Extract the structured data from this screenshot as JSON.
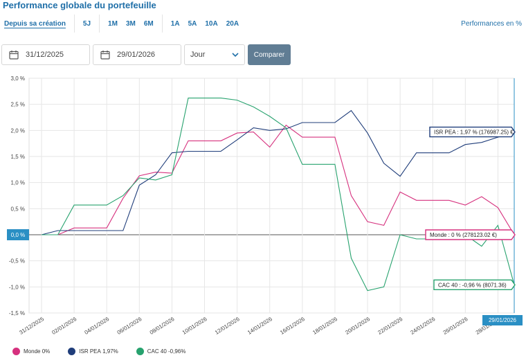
{
  "header": {
    "title": "Performance globale du portefeuille",
    "perf_unit_label": "Performances en %",
    "periods": [
      {
        "label": "Depuis sa création",
        "active": true
      },
      {
        "label": "5J"
      },
      {
        "label": "1M"
      },
      {
        "label": "3M"
      },
      {
        "label": "6M"
      },
      {
        "label": "1A"
      },
      {
        "label": "5A"
      },
      {
        "label": "10A"
      },
      {
        "label": "20A"
      }
    ]
  },
  "filters": {
    "start_date": "31/12/2025",
    "end_date": "29/01/2026",
    "granularity": "Jour",
    "compare_label": "Comparer"
  },
  "chart_data": {
    "type": "line",
    "title": "Performance globale du portefeuille",
    "ylabel": "Performances en %",
    "ylim": [
      -1.5,
      3.0
    ],
    "yticks": [
      "3,0 %",
      "2,5 %",
      "2,0 %",
      "1,5 %",
      "1,0 %",
      "0,5 %",
      "",
      "-0,5 %",
      "-1,0 %",
      "-1,5 %"
    ],
    "ytick_values": [
      3.0,
      2.5,
      2.0,
      1.5,
      1.0,
      0.5,
      0.0,
      -0.5,
      -1.0,
      -1.5
    ],
    "x": [
      "31/12/2025",
      "01/01/2026",
      "02/01/2026",
      "03/01/2026",
      "04/01/2026",
      "05/01/2026",
      "06/01/2026",
      "07/01/2026",
      "08/01/2026",
      "09/01/2026",
      "10/01/2026",
      "11/01/2026",
      "12/01/2026",
      "13/01/2026",
      "14/01/2026",
      "15/01/2026",
      "16/01/2026",
      "17/01/2026",
      "18/01/2026",
      "19/01/2026",
      "20/01/2026",
      "21/01/2026",
      "22/01/2026",
      "23/01/2026",
      "24/01/2026",
      "25/01/2026",
      "26/01/2026",
      "27/01/2026",
      "28/01/2026",
      "29/01/2026"
    ],
    "xtick_labels": [
      "31/12/2025",
      "02/01/2026",
      "04/01/2026",
      "06/01/2026",
      "08/01/2026",
      "10/01/2026",
      "12/01/2026",
      "14/01/2026",
      "16/01/2026",
      "18/01/2026",
      "20/01/2026",
      "22/01/2026",
      "24/01/2026",
      "26/01/2026",
      "28/01/2026"
    ],
    "series": [
      {
        "name": "Monde",
        "legend": "0%",
        "color": "#d6317e",
        "values": [
          0,
          0,
          0.13,
          0.13,
          0.13,
          0.7,
          1.13,
          1.2,
          1.18,
          1.8,
          1.8,
          1.8,
          1.95,
          1.97,
          1.68,
          2.1,
          1.87,
          1.87,
          1.87,
          0.75,
          0.25,
          0.18,
          0.82,
          0.66,
          0.66,
          0.66,
          0.57,
          0.73,
          0.52,
          0.0
        ],
        "tooltip": "Monde : 0 % (278123.02 €)"
      },
      {
        "name": "ISR PEA",
        "legend": "1,97%",
        "color": "#1f3d7a",
        "values": [
          0,
          0.08,
          0.08,
          0.08,
          0.08,
          0.08,
          0.95,
          1.15,
          1.57,
          1.6,
          1.6,
          1.6,
          1.82,
          2.05,
          2.0,
          2.03,
          2.15,
          2.15,
          2.15,
          2.38,
          1.95,
          1.37,
          1.12,
          1.57,
          1.57,
          1.57,
          1.73,
          1.77,
          1.87,
          1.97
        ],
        "tooltip": "ISR PEA : 1,97 % (176987.25) €"
      },
      {
        "name": "CAC 40",
        "legend": "-0,96%",
        "color": "#27a26e",
        "values": [
          0,
          0,
          0.57,
          0.57,
          0.57,
          0.75,
          1.09,
          1.05,
          1.15,
          2.62,
          2.62,
          2.62,
          2.58,
          2.45,
          2.27,
          2.05,
          1.35,
          1.35,
          1.35,
          -0.45,
          -1.07,
          -1.0,
          0.0,
          -0.08,
          -0.08,
          -0.08,
          0.0,
          -0.22,
          0.18,
          -0.96
        ],
        "tooltip": "CAC 40 : -0,96 % (8071.36)"
      }
    ],
    "zero_badge": "0,0 %",
    "crosshair_label": "29/01/2026",
    "grid": true,
    "legend_position": "bottom-left"
  }
}
